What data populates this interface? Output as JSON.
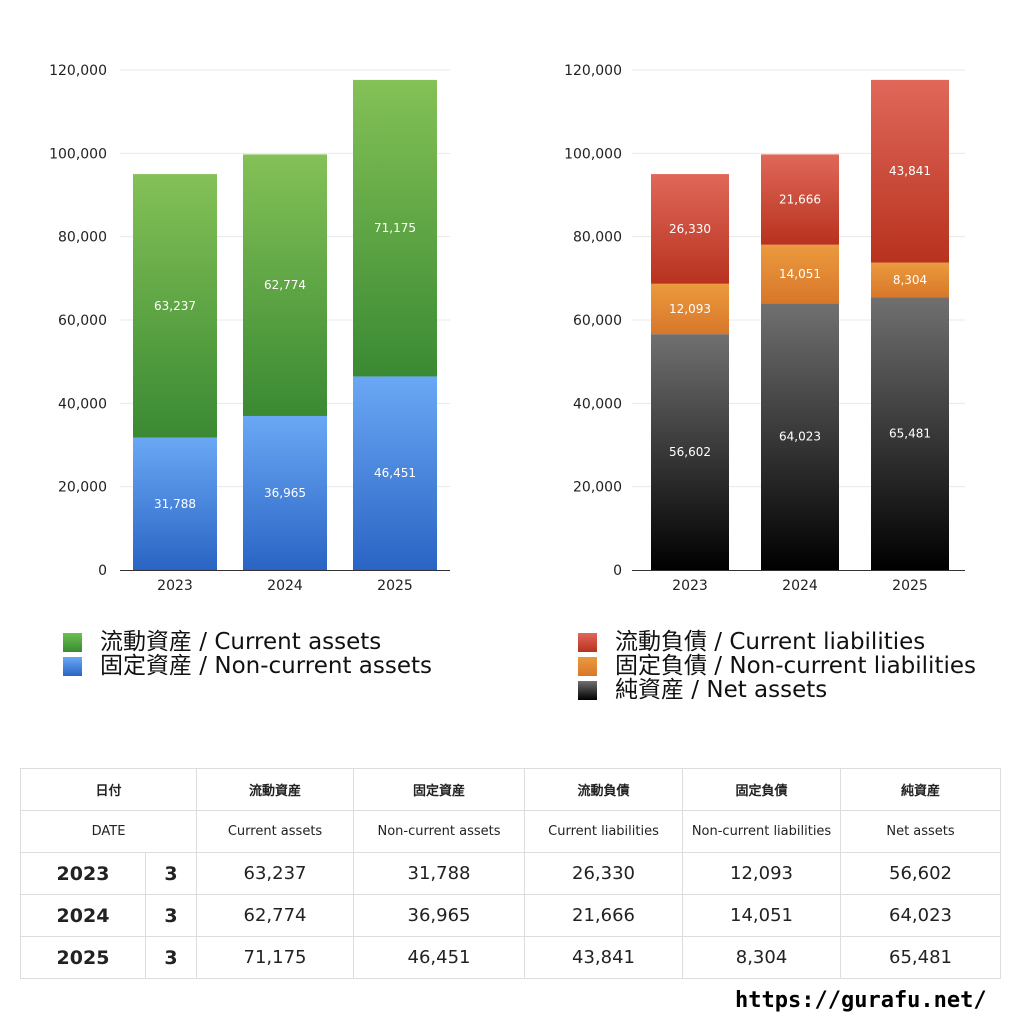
{
  "chart_data": [
    {
      "type": "bar",
      "stacked": true,
      "categories": [
        "2023",
        "2024",
        "2025"
      ],
      "ylim": [
        0,
        120000
      ],
      "yticks": [
        "0",
        "20,000",
        "40,000",
        "60,000",
        "80,000",
        "100,000",
        "120,000"
      ],
      "series": [
        {
          "name": "固定資産 / Non-current assets",
          "values": [
            31788,
            36965,
            46451
          ],
          "labels": [
            "31,788",
            "36,965",
            "46,451"
          ],
          "colors": [
            "#6aa8f5",
            "#2a64c4"
          ]
        },
        {
          "name": "流動資産 / Current assets",
          "values": [
            63237,
            62774,
            71175
          ],
          "labels": [
            "63,237",
            "62,774",
            "71,175"
          ],
          "colors": [
            "#84c157",
            "#3a8a33"
          ]
        }
      ],
      "legend": [
        "流動資産 / Current assets",
        "固定資産 / Non-current assets"
      ],
      "legend_colors": [
        "#4caa3e",
        "#3a7ee0"
      ]
    },
    {
      "type": "bar",
      "stacked": true,
      "categories": [
        "2023",
        "2024",
        "2025"
      ],
      "ylim": [
        0,
        120000
      ],
      "yticks": [
        "0",
        "20,000",
        "40,000",
        "60,000",
        "80,000",
        "100,000",
        "120,000"
      ],
      "series": [
        {
          "name": "純資産 / Net assets",
          "values": [
            56602,
            64023,
            65481
          ],
          "labels": [
            "56,602",
            "64,023",
            "65,481"
          ],
          "colors": [
            "#707070",
            "#000000"
          ]
        },
        {
          "name": "固定負債 / Non-current liabilities",
          "values": [
            12093,
            14051,
            8304
          ],
          "labels": [
            "12,093",
            "14,051",
            "8,304"
          ],
          "colors": [
            "#eb9a3e",
            "#d8772a"
          ]
        },
        {
          "name": "流動負債 / Current liabilities",
          "values": [
            26330,
            21666,
            43841
          ],
          "labels": [
            "26,330",
            "21,666",
            "43,841"
          ],
          "colors": [
            "#e0685a",
            "#b8321e"
          ]
        }
      ],
      "legend": [
        "流動負債 / Current liabilities",
        "固定負債 / Non-current liabilities",
        "純資産 / Net assets"
      ],
      "legend_colors": [
        "#d24a3a",
        "#e4883a",
        "#333333"
      ]
    }
  ],
  "table": {
    "header_jp": [
      "日付",
      "流動資産",
      "固定資産",
      "流動負債",
      "固定負債",
      "純資産"
    ],
    "header_en": [
      "DATE",
      "Current assets",
      "Non-current assets",
      "Current liabilities",
      "Non-current liabilities",
      "Net assets"
    ],
    "rows": [
      {
        "year": "2023",
        "month": "3",
        "values": [
          "63,237",
          "31,788",
          "26,330",
          "12,093",
          "56,602"
        ]
      },
      {
        "year": "2024",
        "month": "3",
        "values": [
          "62,774",
          "36,965",
          "21,666",
          "14,051",
          "64,023"
        ]
      },
      {
        "year": "2025",
        "month": "3",
        "values": [
          "71,175",
          "46,451",
          "43,841",
          "8,304",
          "65,481"
        ]
      }
    ]
  },
  "footer": {
    "url": "https://gurafu.net/"
  }
}
